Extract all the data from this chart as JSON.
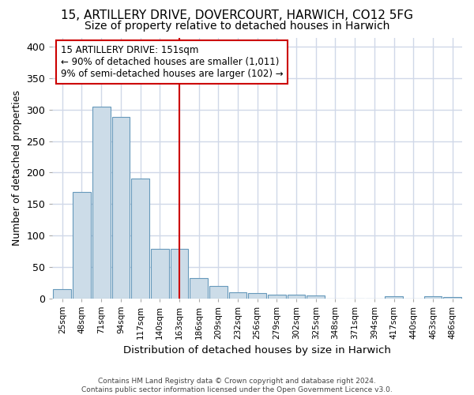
{
  "title1": "15, ARTILLERY DRIVE, DOVERCOURT, HARWICH, CO12 5FG",
  "title2": "Size of property relative to detached houses in Harwich",
  "xlabel": "Distribution of detached houses by size in Harwich",
  "ylabel": "Number of detached properties",
  "footer1": "Contains HM Land Registry data © Crown copyright and database right 2024.",
  "footer2": "Contains public sector information licensed under the Open Government Licence v3.0.",
  "annotation_line1": "15 ARTILLERY DRIVE: 151sqm",
  "annotation_line2": "← 90% of detached houses are smaller (1,011)",
  "annotation_line3": "9% of semi-detached houses are larger (102) →",
  "bar_color": "#ccdce8",
  "bar_edge_color": "#6699bb",
  "vline_color": "#cc0000",
  "categories": [
    "25sqm",
    "48sqm",
    "71sqm",
    "94sqm",
    "117sqm",
    "140sqm",
    "163sqm",
    "186sqm",
    "209sqm",
    "232sqm",
    "256sqm",
    "279sqm",
    "302sqm",
    "325sqm",
    "348sqm",
    "371sqm",
    "394sqm",
    "417sqm",
    "440sqm",
    "463sqm",
    "486sqm"
  ],
  "values": [
    15,
    169,
    305,
    288,
    191,
    79,
    79,
    32,
    19,
    9,
    8,
    6,
    6,
    5,
    0,
    0,
    0,
    3,
    0,
    3,
    2
  ],
  "ylim": [
    0,
    415
  ],
  "yticks": [
    0,
    50,
    100,
    150,
    200,
    250,
    300,
    350,
    400
  ],
  "background_color": "#ffffff",
  "plot_bg_color": "#ffffff",
  "grid_color": "#d0d8e8",
  "title_fontsize": 11,
  "subtitle_fontsize": 10,
  "annotation_box_color": "#ffffff",
  "annotation_box_edge": "#cc0000",
  "vline_idx": 6
}
